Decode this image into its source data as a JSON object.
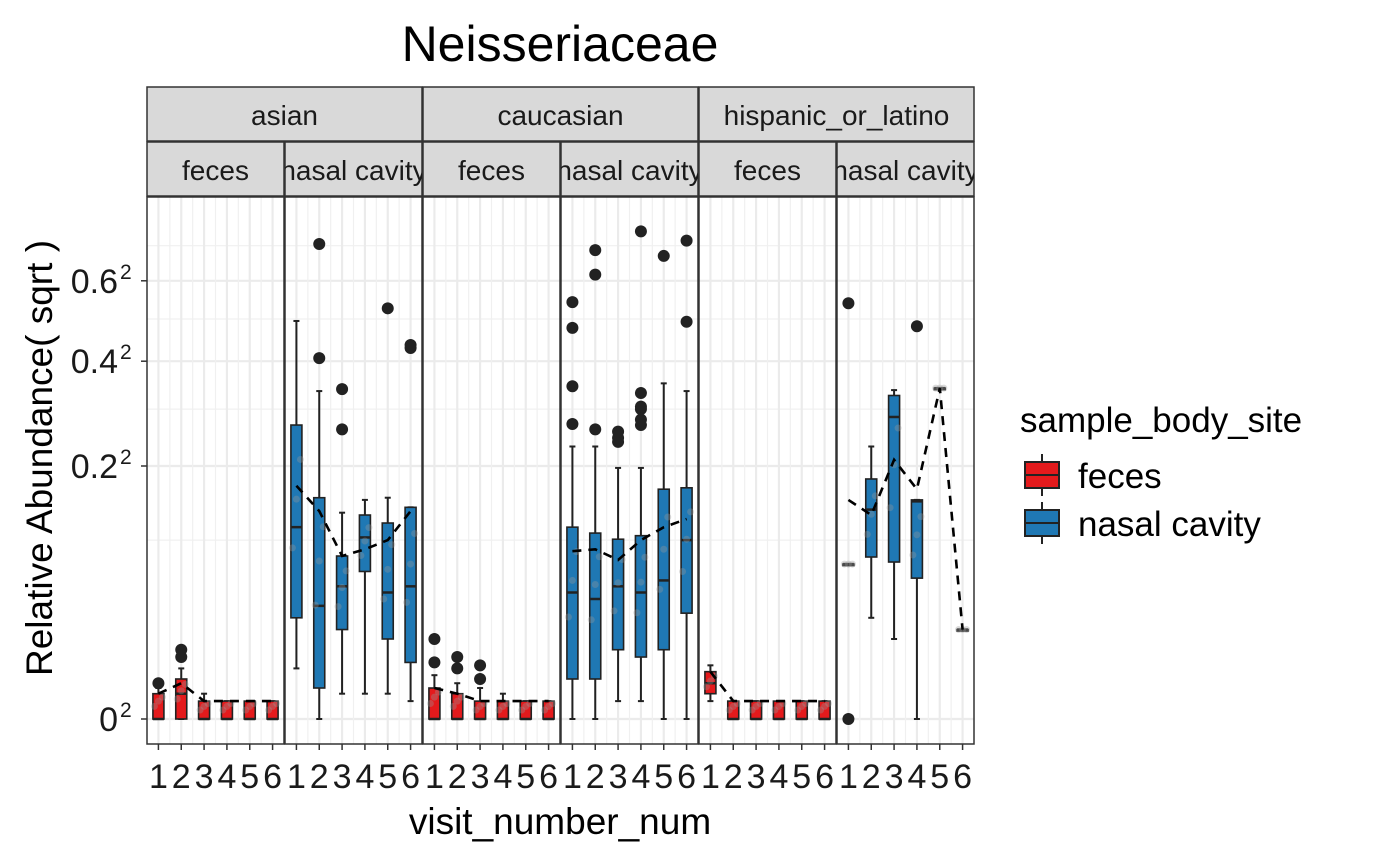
{
  "chart_data": {
    "type": "box",
    "title": "Neisseriaceae",
    "xlabel": "visit_number_num",
    "ylabel": "Relative Abundance( sqrt )",
    "y_scale": "sqrt",
    "ylim": [
      0,
      0.8
    ],
    "y_ticks": [
      {
        "value": 0.0,
        "base": "0",
        "exp": "2"
      },
      {
        "value": 0.2,
        "base": "0.2",
        "exp": "2"
      },
      {
        "value": 0.4,
        "base": "0.4",
        "exp": "2"
      },
      {
        "value": 0.6,
        "base": "0.6",
        "exp": "2"
      }
    ],
    "x_ticks": [
      "1",
      "2",
      "3",
      "4",
      "5",
      "6"
    ],
    "xlim": [
      0.5,
      6.5
    ],
    "grid": true,
    "legend": {
      "title": "sample_body_site",
      "placement": "right",
      "entries": [
        {
          "label": "feces",
          "color": "#e41a1c"
        },
        {
          "label": "nasal cavity",
          "color": "#1f78b4"
        }
      ]
    },
    "strip_colors": {
      "fill": "#d9d9d9",
      "border": "#333333"
    },
    "facets": [
      {
        "group": "asian",
        "sites": [
          {
            "site": "feces",
            "label": "feces",
            "boxes": [
              {
                "x": 1,
                "q1": 0,
                "median": 0,
                "q3": 0.002,
                "lo": 0,
                "hi": 0.003,
                "outliers": [
                  0.004
                ]
              },
              {
                "x": 2,
                "q1": 0,
                "median": 0.002,
                "q3": 0.005,
                "lo": 0,
                "hi": 0.008,
                "outliers": [
                  0.012,
                  0.015
                ]
              },
              {
                "x": 3,
                "q1": 0,
                "median": 0,
                "q3": 0.001,
                "lo": 0,
                "hi": 0.002,
                "outliers": []
              },
              {
                "x": 4,
                "q1": 0,
                "median": 0,
                "q3": 0.001,
                "lo": 0,
                "hi": 0.001,
                "outliers": []
              },
              {
                "x": 5,
                "q1": 0,
                "median": 0,
                "q3": 0.001,
                "lo": 0,
                "hi": 0.001,
                "outliers": []
              },
              {
                "x": 6,
                "q1": 0,
                "median": 0,
                "q3": 0.001,
                "lo": 0,
                "hi": 0.001,
                "outliers": []
              }
            ],
            "mean_line": [
              0.002,
              0.004,
              0.001,
              0.001,
              0.001,
              0.001
            ]
          },
          {
            "site": "nasal cavity",
            "label": "nasal cavity",
            "boxes": [
              {
                "x": 1,
                "q1": 0.032,
                "median": 0.115,
                "q3": 0.27,
                "lo": 0.008,
                "hi": 0.495,
                "outliers": []
              },
              {
                "x": 2,
                "q1": 0.003,
                "median": 0.04,
                "q3": 0.153,
                "lo": 0,
                "hi": 0.336,
                "outliers": [
                  0.407,
                  0.705
                ]
              },
              {
                "x": 3,
                "q1": 0.025,
                "median": 0.055,
                "q3": 0.083,
                "lo": 0.002,
                "hi": 0.133,
                "outliers": [
                  0.262,
                  0.34
                ]
              },
              {
                "x": 4,
                "q1": 0.068,
                "median": 0.103,
                "q3": 0.13,
                "lo": 0.002,
                "hi": 0.15,
                "outliers": []
              },
              {
                "x": 5,
                "q1": 0.02,
                "median": 0.05,
                "q3": 0.12,
                "lo": 0.002,
                "hi": 0.153,
                "outliers": [
                  0.527
                ]
              },
              {
                "x": 6,
                "q1": 0.01,
                "median": 0.055,
                "q3": 0.14,
                "lo": 0.001,
                "hi": 0.14,
                "outliers": [
                  0.43,
                  0.437
                ]
              }
            ],
            "mean_line": [
              0.17,
              0.135,
              0.083,
              0.09,
              0.1,
              0.135
            ]
          }
        ]
      },
      {
        "group": "caucasian",
        "sites": [
          {
            "site": "feces",
            "label": "feces",
            "boxes": [
              {
                "x": 1,
                "q1": 0,
                "median": 0,
                "q3": 0.003,
                "lo": 0,
                "hi": 0.006,
                "outliers": [
                  0.01,
                  0.02
                ]
              },
              {
                "x": 2,
                "q1": 0,
                "median": 0,
                "q3": 0.002,
                "lo": 0,
                "hi": 0.004,
                "outliers": [
                  0.008,
                  0.012
                ]
              },
              {
                "x": 3,
                "q1": 0,
                "median": 0,
                "q3": 0.001,
                "lo": 0,
                "hi": 0.003,
                "outliers": [
                  0.005,
                  0.009
                ]
              },
              {
                "x": 4,
                "q1": 0,
                "median": 0,
                "q3": 0.001,
                "lo": 0,
                "hi": 0.002,
                "outliers": []
              },
              {
                "x": 5,
                "q1": 0,
                "median": 0,
                "q3": 0.001,
                "lo": 0,
                "hi": 0.001,
                "outliers": []
              },
              {
                "x": 6,
                "q1": 0,
                "median": 0,
                "q3": 0.001,
                "lo": 0,
                "hi": 0.001,
                "outliers": []
              }
            ],
            "mean_line": [
              0.003,
              0.002,
              0.001,
              0.001,
              0.001,
              0.001
            ]
          },
          {
            "site": "nasal cavity",
            "label": "nasal cavity",
            "boxes": [
              {
                "x": 1,
                "q1": 0.005,
                "median": 0.05,
                "q3": 0.115,
                "lo": 0,
                "hi": 0.232,
                "outliers": [
                  0.272,
                  0.346,
                  0.478,
                  0.543
                ]
              },
              {
                "x": 2,
                "q1": 0.005,
                "median": 0.045,
                "q3": 0.108,
                "lo": 0,
                "hi": 0.232,
                "outliers": [
                  0.262,
                  0.617,
                  0.687
                ]
              },
              {
                "x": 3,
                "q1": 0.015,
                "median": 0.055,
                "q3": 0.101,
                "lo": 0.001,
                "hi": 0.197,
                "outliers": [
                  0.24,
                  0.247,
                  0.258
                ]
              },
              {
                "x": 4,
                "q1": 0.012,
                "median": 0.05,
                "q3": 0.105,
                "lo": 0.001,
                "hi": 0.197,
                "outliers": [
                  0.27,
                  0.28,
                  0.3,
                  0.305,
                  0.332,
                  0.743
                ]
              },
              {
                "x": 5,
                "q1": 0.015,
                "median": 0.06,
                "q3": 0.165,
                "lo": 0,
                "hi": 0.352,
                "outliers": [
                  0.67
                ]
              },
              {
                "x": 6,
                "q1": 0.035,
                "median": 0.1,
                "q3": 0.167,
                "lo": 0,
                "hi": 0.336,
                "outliers": [
                  0.493,
                  0.715
                ]
              }
            ],
            "mean_line": [
              0.088,
              0.09,
              0.079,
              0.1,
              0.115,
              0.125
            ]
          }
        ]
      },
      {
        "group": "hispanic_or_latino",
        "sites": [
          {
            "site": "feces",
            "label": "feces",
            "boxes": [
              {
                "x": 1,
                "q1": 0.002,
                "median": 0.004,
                "q3": 0.007,
                "lo": 0.001,
                "hi": 0.009,
                "outliers": []
              },
              {
                "x": 2,
                "q1": 0,
                "median": 0,
                "q3": 0.001,
                "lo": 0,
                "hi": 0.001,
                "outliers": []
              },
              {
                "x": 3,
                "q1": 0,
                "median": 0,
                "q3": 0.001,
                "lo": 0,
                "hi": 0.001,
                "outliers": []
              },
              {
                "x": 4,
                "q1": 0,
                "median": 0,
                "q3": 0.001,
                "lo": 0,
                "hi": 0.001,
                "outliers": []
              },
              {
                "x": 5,
                "q1": 0,
                "median": 0,
                "q3": 0.001,
                "lo": 0,
                "hi": 0.001,
                "outliers": []
              },
              {
                "x": 6,
                "q1": 0,
                "median": 0,
                "q3": 0.001,
                "lo": 0,
                "hi": 0.001,
                "outliers": []
              }
            ],
            "mean_line": [
              0.007,
              0.001,
              0.001,
              0.001,
              0.001,
              0.001
            ]
          },
          {
            "site": "nasal cavity",
            "label": "nasal cavity",
            "boxes": [
              {
                "x": 1,
                "q1": 0.075,
                "median": 0.075,
                "q3": 0.075,
                "lo": 0.075,
                "hi": 0.075,
                "outliers": [
                  0,
                  0.54
                ]
              },
              {
                "x": 2,
                "q1": 0.082,
                "median": 0.137,
                "q3": 0.18,
                "lo": 0.032,
                "hi": 0.232,
                "outliers": []
              },
              {
                "x": 3,
                "q1": 0.077,
                "median": 0.285,
                "q3": 0.327,
                "lo": 0.02,
                "hi": 0.338,
                "outliers": []
              },
              {
                "x": 4,
                "q1": 0.062,
                "median": 0.148,
                "q3": 0.15,
                "lo": 0,
                "hi": 0.15,
                "outliers": [
                  0.482
                ]
              },
              {
                "x": 5,
                "q1": 0.342,
                "median": 0.342,
                "q3": 0.342,
                "lo": 0.342,
                "hi": 0.342,
                "outliers": []
              },
              {
                "x": 6,
                "q1": 0.025,
                "median": 0.025,
                "q3": 0.025,
                "lo": 0.025,
                "hi": 0.025,
                "outliers": []
              }
            ],
            "mean_line": [
              0.15,
              0.13,
              0.21,
              0.165,
              0.342,
              0.025
            ]
          }
        ]
      }
    ]
  }
}
